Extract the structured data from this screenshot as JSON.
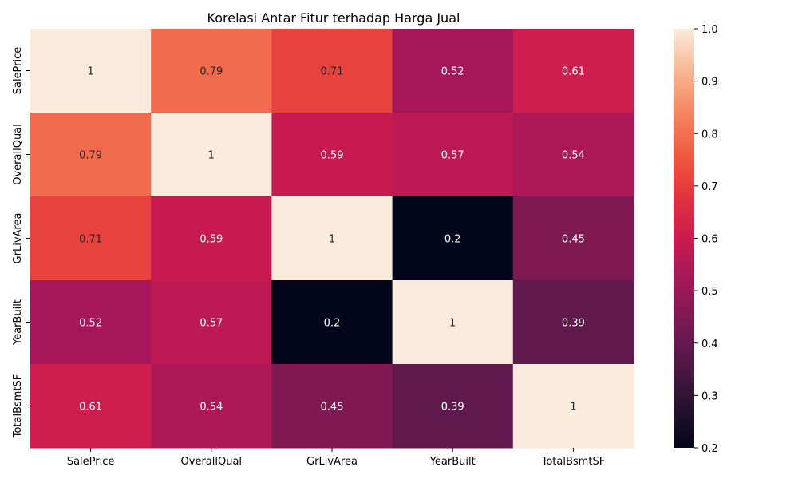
{
  "chart_data": {
    "type": "heatmap",
    "title": "Korelasi Antar Fitur terhadap Harga Jual",
    "x_labels": [
      "SalePrice",
      "OverallQual",
      "GrLivArea",
      "YearBuilt",
      "TotalBsmtSF"
    ],
    "y_labels": [
      "SalePrice",
      "OverallQual",
      "GrLivArea",
      "YearBuilt",
      "TotalBsmtSF"
    ],
    "values": [
      [
        1,
        0.79,
        0.71,
        0.52,
        0.61
      ],
      [
        0.79,
        1,
        0.59,
        0.57,
        0.54
      ],
      [
        0.71,
        0.59,
        1,
        0.2,
        0.45
      ],
      [
        0.52,
        0.57,
        0.2,
        1,
        0.39
      ],
      [
        0.61,
        0.54,
        0.45,
        0.39,
        1
      ]
    ],
    "value_labels": [
      [
        "1",
        "0.79",
        "0.71",
        "0.52",
        "0.61"
      ],
      [
        "0.79",
        "1",
        "0.59",
        "0.57",
        "0.54"
      ],
      [
        "0.71",
        "0.59",
        "1",
        "0.2",
        "0.45"
      ],
      [
        "0.52",
        "0.57",
        "0.2",
        "1",
        "0.39"
      ],
      [
        "0.61",
        "0.54",
        "0.45",
        "0.39",
        "1"
      ]
    ],
    "colorbar": {
      "range": [
        0.2,
        1.0
      ],
      "ticks": [
        "0.2",
        "0.3",
        "0.4",
        "0.5",
        "0.6",
        "0.7",
        "0.8",
        "0.9",
        "1.0"
      ]
    },
    "colormap": "rocket"
  }
}
